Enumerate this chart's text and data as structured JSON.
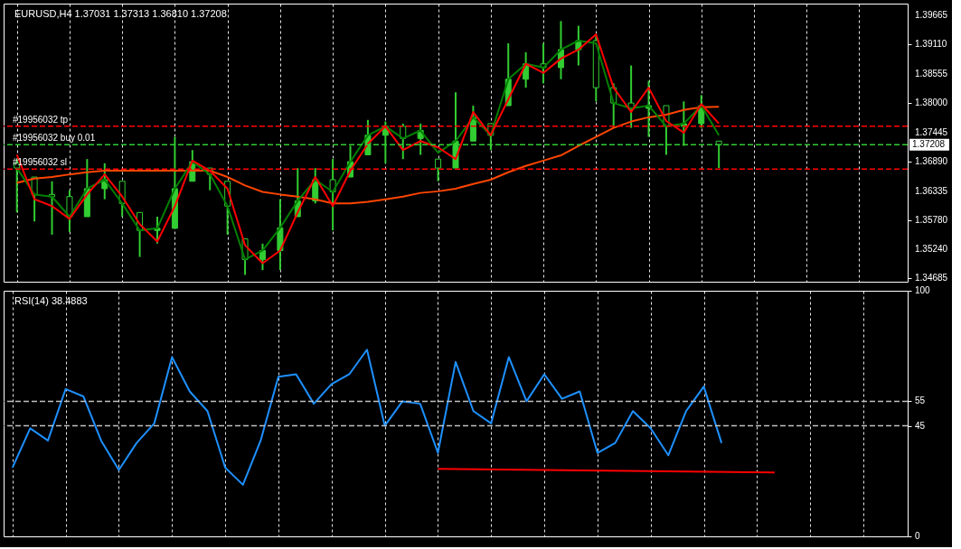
{
  "chart_data": [
    {
      "type": "candlestick",
      "title": "EURUSD,H4  1.37031 1.37313 1.36810 1.37208",
      "color": "#32cd32",
      "grid": "x",
      "categories": [
        null,
        null,
        null,
        null,
        null,
        null,
        null,
        null,
        null,
        null,
        null,
        null,
        null,
        null,
        null,
        null,
        null,
        null,
        null,
        null,
        null,
        null,
        null,
        null,
        null,
        null,
        null,
        null,
        null,
        null,
        null,
        null,
        null,
        null,
        null,
        null,
        null,
        null,
        null,
        null,
        null,
        null,
        null,
        null,
        null,
        null,
        null,
        null,
        null,
        null,
        null
      ],
      "ohlc": [
        [
          1.3686,
          1.3694,
          1.3593,
          1.3677
        ],
        [
          1.366,
          1.366,
          1.3576,
          1.3627
        ],
        [
          1.3627,
          1.3652,
          1.3551,
          1.3623
        ],
        [
          1.3623,
          1.3635,
          1.3556,
          1.3585
        ],
        [
          1.3585,
          1.3694,
          1.3585,
          1.3638
        ],
        [
          1.3638,
          1.3686,
          1.3618,
          1.3655
        ],
        [
          1.3652,
          1.3652,
          1.3585,
          1.361
        ],
        [
          1.3593,
          1.3593,
          1.3509,
          1.3559
        ],
        [
          1.3559,
          1.3585,
          1.3534,
          1.3563
        ],
        [
          1.3563,
          1.3736,
          1.3563,
          1.3638
        ],
        [
          1.3652,
          1.3711,
          1.3652,
          1.3689
        ],
        [
          1.3677,
          1.3677,
          1.3635,
          1.3665
        ],
        [
          1.3652,
          1.3652,
          1.3551,
          1.3605
        ],
        [
          1.3543,
          1.3543,
          1.3475,
          1.3504
        ],
        [
          1.3504,
          1.3534,
          1.3484,
          1.3521
        ],
        [
          1.3521,
          1.3618,
          1.3484,
          1.3564
        ],
        [
          1.3585,
          1.3677,
          1.3585,
          1.3615
        ],
        [
          1.3615,
          1.3677,
          1.361,
          1.3655
        ],
        [
          1.3655,
          1.3694,
          1.3559,
          1.3632
        ],
        [
          1.366,
          1.3719,
          1.366,
          1.3689
        ],
        [
          1.3702,
          1.3768,
          1.3702,
          1.3739
        ],
        [
          1.3739,
          1.3765,
          1.3686,
          1.3756
        ],
        [
          1.3756,
          1.3761,
          1.3694,
          1.3733
        ],
        [
          1.3733,
          1.3761,
          1.3702,
          1.3748
        ],
        [
          1.3694,
          1.3694,
          1.3652,
          1.3677
        ],
        [
          1.3677,
          1.382,
          1.3677,
          1.3728
        ],
        [
          1.3728,
          1.3795,
          1.3728,
          1.3773
        ],
        [
          1.3761,
          1.3761,
          1.3711,
          1.3739
        ],
        [
          1.3795,
          1.3913,
          1.3795,
          1.3845
        ],
        [
          1.3845,
          1.3896,
          1.3829,
          1.3874
        ],
        [
          1.3874,
          1.3913,
          1.3837,
          1.3867
        ],
        [
          1.3867,
          1.3955,
          1.3845,
          1.3901
        ],
        [
          1.3901,
          1.3946,
          1.3871,
          1.3918
        ],
        [
          1.3918,
          1.393,
          1.3803,
          1.3829
        ],
        [
          1.3829,
          1.3837,
          1.3753,
          1.38
        ],
        [
          1.38,
          1.3871,
          1.3753,
          1.379
        ],
        [
          1.379,
          1.3842,
          1.3736,
          1.3795
        ],
        [
          1.3795,
          1.3795,
          1.3702,
          1.3756
        ],
        [
          1.3756,
          1.3803,
          1.3719,
          1.3761
        ],
        [
          1.3761,
          1.3815,
          1.3753,
          1.3795
        ],
        [
          1.3728,
          1.3728,
          1.3677,
          1.3721
        ],
        null,
        null,
        null,
        null,
        null,
        null,
        null,
        null,
        null,
        null
      ],
      "series": [
        {
          "type": "line",
          "color": "#ff4500",
          "values": [
            1.3649,
            1.3657,
            1.366,
            1.3665,
            1.3669,
            1.3672,
            1.3672,
            1.3672,
            1.3672,
            1.3672,
            1.3672,
            1.3672,
            1.366,
            1.3644,
            1.3632,
            1.3627,
            1.3623,
            1.3618,
            1.361,
            1.361,
            1.3613,
            1.3618,
            1.3623,
            1.363,
            1.3633,
            1.3638,
            1.3647,
            1.3655,
            1.3669,
            1.3681,
            1.3691,
            1.3701,
            1.3719,
            1.3736,
            1.3753,
            1.3765,
            1.3773,
            1.3778,
            1.3787,
            1.3792,
            1.3793,
            null,
            null,
            null,
            null,
            null,
            null,
            null,
            null,
            null,
            null
          ]
        },
        {
          "type": "line",
          "color": "#008000",
          "values": [
            1.3677,
            1.3627,
            1.3623,
            1.3585,
            1.3638,
            1.3655,
            1.361,
            1.3559,
            1.3563,
            1.3638,
            1.3689,
            1.3665,
            1.3605,
            1.3504,
            1.3521,
            1.3564,
            1.3615,
            1.3655,
            1.3632,
            1.3689,
            1.3739,
            1.3756,
            1.3733,
            1.3748,
            1.3706,
            1.3728,
            1.3773,
            1.3739,
            1.3845,
            1.3874,
            1.3867,
            1.3901,
            1.3918,
            1.3913,
            1.38,
            1.379,
            1.3795,
            1.3756,
            1.3761,
            1.3795,
            1.3739,
            null,
            null,
            null,
            null,
            null,
            null,
            null,
            null,
            null,
            null
          ]
        },
        {
          "type": "line",
          "color": "#ff0000",
          "values": [
            1.3702,
            1.3618,
            1.3605,
            1.3581,
            1.3627,
            1.3665,
            1.3623,
            1.3571,
            1.3538,
            1.3605,
            1.3691,
            1.3672,
            1.3638,
            1.3531,
            1.3497,
            1.3521,
            1.3593,
            1.366,
            1.3605,
            1.3672,
            1.3723,
            1.3756,
            1.3711,
            1.3728,
            1.3716,
            1.3694,
            1.3783,
            1.3739,
            1.3807,
            1.3874,
            1.3857,
            1.3884,
            1.3901,
            1.393,
            1.3829,
            1.3783,
            1.3829,
            1.3766,
            1.3744,
            1.3798,
            1.3761,
            null,
            null,
            null,
            null,
            null,
            null,
            null,
            null,
            null,
            null
          ]
        }
      ],
      "ylim": [
        1.3462,
        1.3988
      ],
      "yticks": [
        {
          "value": 1.39665,
          "label": "1.39665"
        },
        {
          "value": 1.3911,
          "label": "1.39110"
        },
        {
          "value": 1.38555,
          "label": "1.38555"
        },
        {
          "value": 1.38,
          "label": "1.38000"
        },
        {
          "value": 1.37445,
          "label": "1.37445"
        },
        {
          "value": 1.3689,
          "label": "1.36890"
        },
        {
          "value": 1.36335,
          "label": "1.36335"
        },
        {
          "value": 1.3578,
          "label": "1.35780"
        },
        {
          "value": 1.3524,
          "label": "1.35240"
        },
        {
          "value": 1.34685,
          "label": "1.34685"
        }
      ],
      "ref_lines": [
        {
          "axis": "y",
          "value": 1.3756,
          "label": "#19956032 tp",
          "color": "#ff0000",
          "line_style": "dashed"
        },
        {
          "axis": "y",
          "value": 1.3721,
          "label": "#19956032 buy 0.01",
          "color": "#32cd32",
          "line_style": "dashed"
        },
        {
          "axis": "y",
          "value": 1.3675,
          "label": "#19956032 sl",
          "color": "#ff0000",
          "line_style": "dashed"
        }
      ],
      "annotations": [
        "1.37208"
      ]
    },
    {
      "type": "line",
      "title": "RSI(14) 38.4883",
      "grid": "x",
      "categories": [
        null,
        null,
        null,
        null,
        null,
        null,
        null,
        null,
        null,
        null,
        null,
        null,
        null,
        null,
        null,
        null,
        null,
        null,
        null,
        null,
        null,
        null,
        null,
        null,
        null,
        null,
        null,
        null,
        null,
        null,
        null,
        null,
        null,
        null,
        null,
        null,
        null,
        null,
        null,
        null,
        null,
        null,
        null,
        null,
        null,
        null,
        null,
        null,
        null,
        null,
        null
      ],
      "series": [
        {
          "color": "#1e90ff",
          "values": [
            28,
            44,
            39,
            60,
            57,
            39,
            27,
            38,
            46,
            73,
            59,
            51,
            28,
            21,
            39,
            65,
            66,
            54,
            62,
            66,
            76,
            45,
            55,
            54,
            34,
            71,
            51,
            46,
            73,
            55,
            66,
            56,
            59,
            34,
            38,
            51,
            44,
            33,
            51,
            61,
            38,
            null,
            null,
            null,
            null,
            null,
            null,
            null,
            null,
            null,
            null
          ]
        },
        {
          "type": "line",
          "color": "#ff0000",
          "values": [
            null,
            null,
            null,
            null,
            null,
            null,
            null,
            null,
            null,
            null,
            null,
            null,
            null,
            null,
            null,
            null,
            null,
            null,
            null,
            null,
            null,
            null,
            null,
            null,
            27.5,
            null,
            null,
            null,
            null,
            null,
            null,
            null,
            null,
            null,
            null,
            null,
            null,
            null,
            null,
            null,
            null,
            null,
            null,
            26,
            null,
            null,
            null,
            null,
            null,
            null,
            null
          ]
        }
      ],
      "ylim": [
        0,
        100
      ],
      "yticks": [
        0,
        45,
        55,
        100
      ],
      "ref_lines": [
        {
          "axis": "y",
          "value": 55,
          "color": "#c0c0c0",
          "line_style": "dashed"
        },
        {
          "axis": "y",
          "value": 45,
          "color": "#c0c0c0",
          "line_style": "dashed"
        }
      ]
    }
  ]
}
